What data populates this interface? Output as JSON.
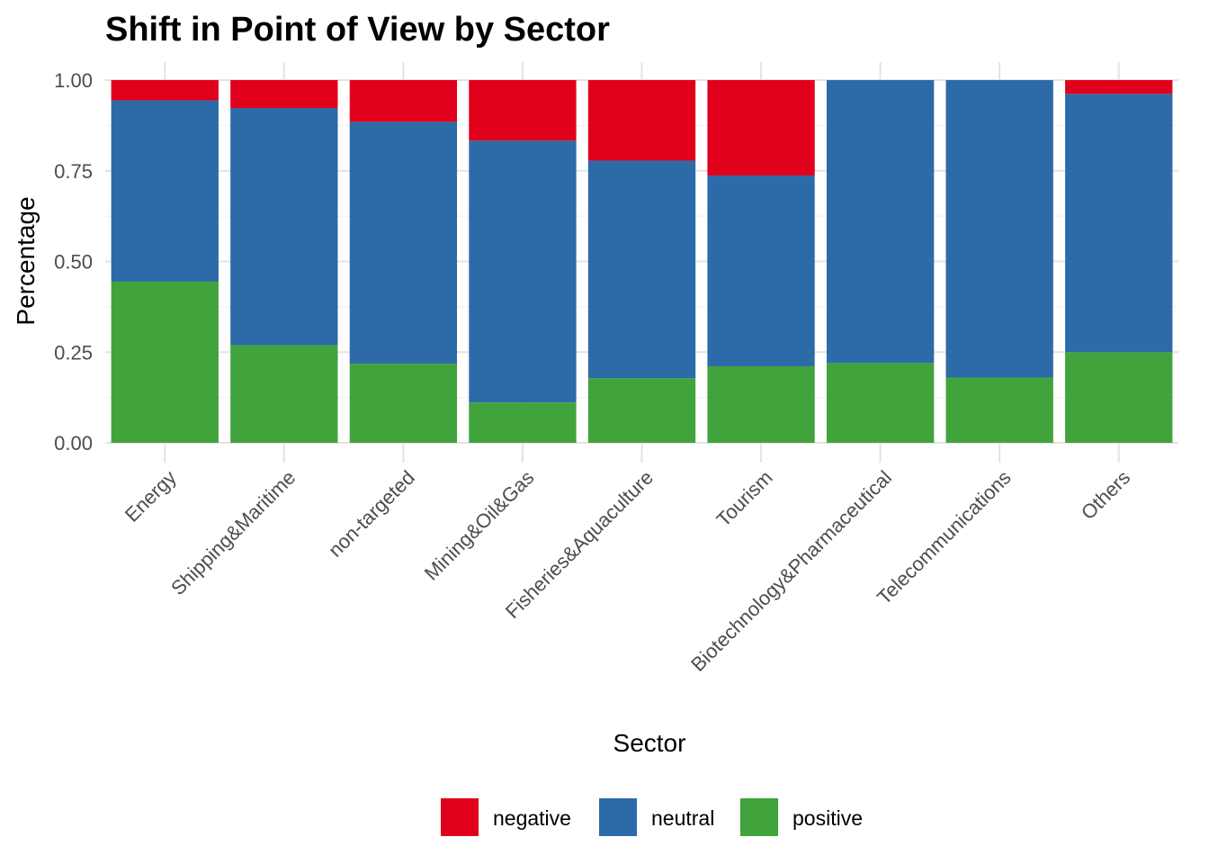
{
  "chart_data": {
    "type": "bar",
    "stacked": true,
    "title": "Shift in Point of View by Sector",
    "xlabel": "Sector",
    "ylabel": "Percentage",
    "ylim": [
      0,
      1
    ],
    "yticks": [
      "0.00",
      "0.25",
      "0.50",
      "0.75",
      "1.00"
    ],
    "grid": true,
    "legend_position": "bottom",
    "categories": [
      "Energy",
      "Shipping&Maritime",
      "non-targeted",
      "Mining&Oil&Gas",
      "Fisheries&Aquaculture",
      "Tourism",
      "Biotechnology&Pharmaceutical",
      "Telecommunications",
      "Others"
    ],
    "series": [
      {
        "name": "negative",
        "color": "#e0001b",
        "values": [
          0.056,
          0.077,
          0.115,
          0.167,
          0.222,
          0.263,
          0.0,
          0.0,
          0.038
        ]
      },
      {
        "name": "neutral",
        "color": "#2d6aa8",
        "values": [
          0.5,
          0.654,
          0.667,
          0.722,
          0.6,
          0.526,
          0.78,
          0.82,
          0.712
        ]
      },
      {
        "name": "positive",
        "color": "#41a33b",
        "values": [
          0.444,
          0.269,
          0.218,
          0.111,
          0.178,
          0.211,
          0.22,
          0.18,
          0.25
        ]
      }
    ]
  }
}
